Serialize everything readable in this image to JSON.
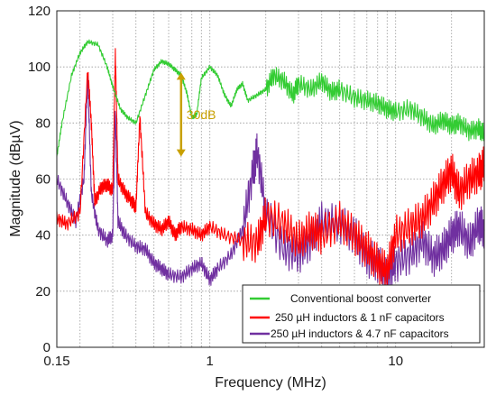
{
  "chart_data": {
    "type": "line",
    "title": "",
    "xlabel": "Frequency (MHz)",
    "ylabel": "Magnitude (dBµV)",
    "xscale": "log",
    "xlim": [
      0.15,
      30
    ],
    "ylim": [
      0,
      120
    ],
    "x_ticks": [
      0.15,
      1,
      10
    ],
    "x_tick_labels": [
      "0.15",
      "1",
      "10"
    ],
    "y_ticks": [
      0,
      20,
      40,
      60,
      80,
      100,
      120
    ],
    "y_tick_labels": [
      "0",
      "20",
      "40",
      "60",
      "80",
      "100",
      "120"
    ],
    "grid": true,
    "legend_position": "bottom-right",
    "annotation": {
      "text": "30dB",
      "x": 0.7,
      "y_top": 98,
      "y_bottom": 68,
      "color": "#c8a000"
    },
    "series": [
      {
        "name": "Conventional boost converter",
        "color": "#33cc33",
        "x": [
          0.15,
          0.16,
          0.18,
          0.2,
          0.22,
          0.25,
          0.28,
          0.3,
          0.33,
          0.36,
          0.4,
          0.45,
          0.5,
          0.55,
          0.6,
          0.65,
          0.7,
          0.75,
          0.8,
          0.85,
          0.9,
          1.0,
          1.1,
          1.2,
          1.3,
          1.4,
          1.5,
          1.6,
          1.8,
          2.0,
          2.2,
          2.5,
          2.8,
          3.0,
          3.5,
          4.0,
          4.5,
          5.0,
          6.0,
          7.0,
          8.0,
          9.0,
          10,
          12,
          14,
          16,
          18,
          20,
          22,
          25,
          28,
          30
        ],
        "y": [
          68,
          80,
          97,
          105,
          109,
          108,
          100,
          93,
          85,
          82,
          80,
          90,
          99,
          102,
          101,
          99,
          97,
          91,
          82,
          83,
          96,
          100,
          97,
          90,
          86,
          92,
          94,
          88,
          90,
          92,
          97,
          95,
          90,
          94,
          92,
          95,
          91,
          92,
          89,
          88,
          87,
          85,
          84,
          85,
          82,
          79,
          81,
          79,
          80,
          77,
          78,
          76
        ]
      },
      {
        "name": "250 µH inductors & 1 nF capacitors",
        "color": "#ff0000",
        "x": [
          0.15,
          0.17,
          0.2,
          0.22,
          0.23,
          0.24,
          0.26,
          0.28,
          0.3,
          0.31,
          0.32,
          0.35,
          0.38,
          0.4,
          0.42,
          0.45,
          0.5,
          0.55,
          0.6,
          0.65,
          0.7,
          0.8,
          0.9,
          1.0,
          1.2,
          1.5,
          1.8,
          2.0,
          2.5,
          3.0,
          3.5,
          4.0,
          5.0,
          6.0,
          7.0,
          8.0,
          9.0,
          10,
          12,
          14,
          16,
          18,
          20,
          22,
          25,
          28,
          30
        ],
        "y": [
          46,
          44,
          48,
          99,
          80,
          52,
          57,
          58,
          56,
          105,
          60,
          55,
          52,
          50,
          82,
          48,
          44,
          42,
          45,
          40,
          43,
          42,
          40,
          43,
          40,
          38,
          37,
          47,
          44,
          38,
          42,
          40,
          45,
          40,
          35,
          30,
          27,
          40,
          43,
          46,
          52,
          58,
          63,
          55,
          60,
          62,
          65
        ]
      },
      {
        "name": "250 µH inductors & 4.7 nF capacitors",
        "color": "#7030a0",
        "x": [
          0.15,
          0.17,
          0.19,
          0.21,
          0.22,
          0.23,
          0.25,
          0.28,
          0.3,
          0.31,
          0.32,
          0.35,
          0.4,
          0.45,
          0.5,
          0.55,
          0.6,
          0.7,
          0.8,
          0.9,
          1.0,
          1.1,
          1.3,
          1.5,
          1.7,
          1.8,
          2.0,
          2.5,
          3.0,
          3.5,
          4.0,
          5.0,
          6.0,
          7.0,
          8.0,
          9.0,
          10,
          12,
          14,
          16,
          18,
          20,
          22,
          25,
          28,
          30
        ],
        "y": [
          60,
          52,
          45,
          60,
          97,
          55,
          42,
          38,
          40,
          85,
          45,
          40,
          36,
          35,
          30,
          28,
          26,
          25,
          28,
          30,
          24,
          28,
          33,
          42,
          62,
          70,
          48,
          35,
          33,
          38,
          45,
          44,
          40,
          32,
          30,
          25,
          30,
          33,
          38,
          32,
          35,
          40,
          43,
          37,
          44,
          42
        ]
      }
    ]
  }
}
